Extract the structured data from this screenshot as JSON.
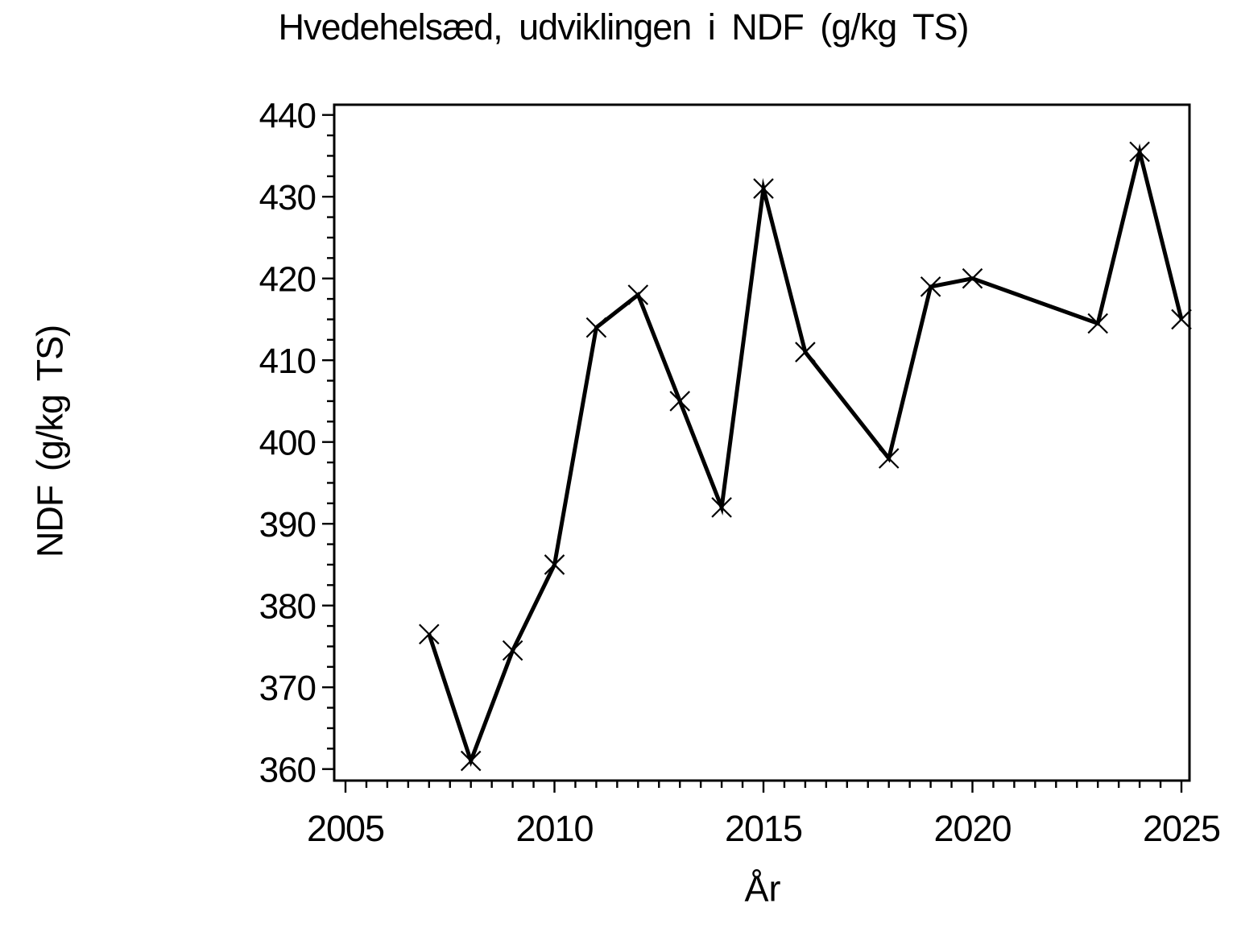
{
  "page": {
    "background": "#ffffff",
    "text_color": "#000000"
  },
  "chart_data": {
    "type": "line",
    "title": "Hvedehelsæd, udviklingen i NDF (g/kg TS)",
    "xlabel": "År",
    "ylabel": "NDF (g/kg TS)",
    "x": [
      2007,
      2008,
      2009,
      2010,
      2011,
      2012,
      2013,
      2014,
      2015,
      2016,
      2018,
      2019,
      2020,
      2023,
      2024,
      2025
    ],
    "y": [
      376.5,
      361,
      374.5,
      385,
      414,
      418,
      405,
      392,
      431,
      411,
      398,
      419,
      420,
      414.5,
      435.5,
      415
    ],
    "series": [
      {
        "name": "NDF (g/kg TS)",
        "color": "#000000",
        "marker": "x"
      }
    ],
    "years_without_markers": [
      2017,
      2021,
      2022
    ],
    "x_ticks_major": [
      2005,
      2010,
      2015,
      2020,
      2025
    ],
    "x_tick_minor_step": 0.5,
    "y_ticks_major": [
      360,
      370,
      380,
      390,
      400,
      410,
      420,
      430,
      440
    ],
    "y_tick_minor_step": 2.5,
    "xlim": [
      2004.7,
      2025.2
    ],
    "ylim": [
      358.5,
      441.3
    ],
    "grid": false,
    "frame": true,
    "legend_position": "none",
    "line_color": "#000000",
    "axis_color": "#000000",
    "background": "#ffffff"
  }
}
